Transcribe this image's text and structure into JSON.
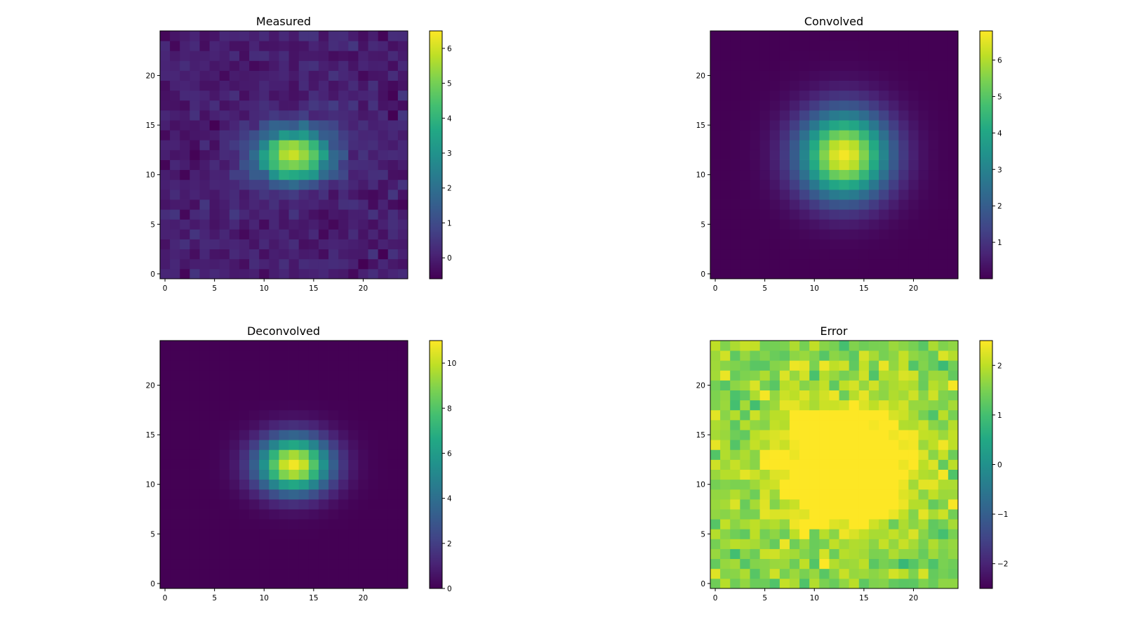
{
  "figure": {
    "panel_count": 4
  },
  "chart_data": [
    {
      "type": "heatmap",
      "title": "Measured",
      "colormap": "viridis",
      "grid_size": [
        25,
        25
      ],
      "xlim": [
        -0.5,
        24.5
      ],
      "ylim": [
        -0.5,
        24.5
      ],
      "xticks": [
        0,
        5,
        10,
        15,
        20
      ],
      "yticks": [
        0,
        5,
        10,
        15,
        20
      ],
      "colorbar": {
        "min": -0.6,
        "max": 6.5,
        "ticks": [
          0,
          1,
          2,
          3,
          4,
          5,
          6
        ]
      },
      "field": {
        "kind": "gaussian",
        "center": [
          13.0,
          12.0
        ],
        "sigma": [
          2.7,
          1.9
        ],
        "amplitude": 6.0,
        "noise": 0.35,
        "offset": 0.0,
        "seed": 7
      }
    },
    {
      "type": "heatmap",
      "title": "Convolved",
      "colormap": "viridis",
      "grid_size": [
        25,
        25
      ],
      "xlim": [
        -0.5,
        24.5
      ],
      "ylim": [
        -0.5,
        24.5
      ],
      "xticks": [
        0,
        5,
        10,
        15,
        20
      ],
      "yticks": [
        0,
        5,
        10,
        15,
        20
      ],
      "colorbar": {
        "min": 0.0,
        "max": 6.8,
        "ticks": [
          1,
          2,
          3,
          4,
          5,
          6
        ]
      },
      "field": {
        "kind": "gaussian",
        "center": [
          13.0,
          12.0
        ],
        "sigma": [
          3.2,
          3.1
        ],
        "amplitude": 6.7,
        "noise": 0.0,
        "offset": 0.0,
        "seed": 11
      }
    },
    {
      "type": "heatmap",
      "title": "Deconvolved",
      "colormap": "viridis",
      "grid_size": [
        25,
        25
      ],
      "xlim": [
        -0.5,
        24.5
      ],
      "ylim": [
        -0.5,
        24.5
      ],
      "xticks": [
        0,
        5,
        10,
        15,
        20
      ],
      "yticks": [
        0,
        5,
        10,
        15,
        20
      ],
      "colorbar": {
        "min": 0.0,
        "max": 11.0,
        "ticks": [
          0,
          2,
          4,
          6,
          8,
          10
        ]
      },
      "field": {
        "kind": "gaussian",
        "center": [
          13.0,
          12.0
        ],
        "sigma": [
          2.6,
          2.0
        ],
        "amplitude": 10.8,
        "noise": 0.0,
        "offset": 0.0,
        "seed": 13
      }
    },
    {
      "type": "heatmap",
      "title": "Error",
      "colormap": "viridis",
      "grid_size": [
        25,
        25
      ],
      "xlim": [
        -0.5,
        24.5
      ],
      "ylim": [
        -0.5,
        24.5
      ],
      "xticks": [
        0,
        5,
        10,
        15,
        20
      ],
      "yticks": [
        0,
        5,
        10,
        15,
        20
      ],
      "colorbar": {
        "min": -2.5,
        "max": 2.5,
        "ticks": [
          -2,
          -1,
          0,
          1,
          2
        ],
        "tick_labels": [
          "−2",
          "−1",
          "0",
          "1",
          "2"
        ]
      },
      "field": {
        "kind": "error",
        "center": [
          13.0,
          12.0
        ],
        "sigma": [
          4.5,
          4.0
        ],
        "amplitude": 2.6,
        "noise": 0.45,
        "offset": 1.6,
        "seed": 23
      }
    }
  ]
}
